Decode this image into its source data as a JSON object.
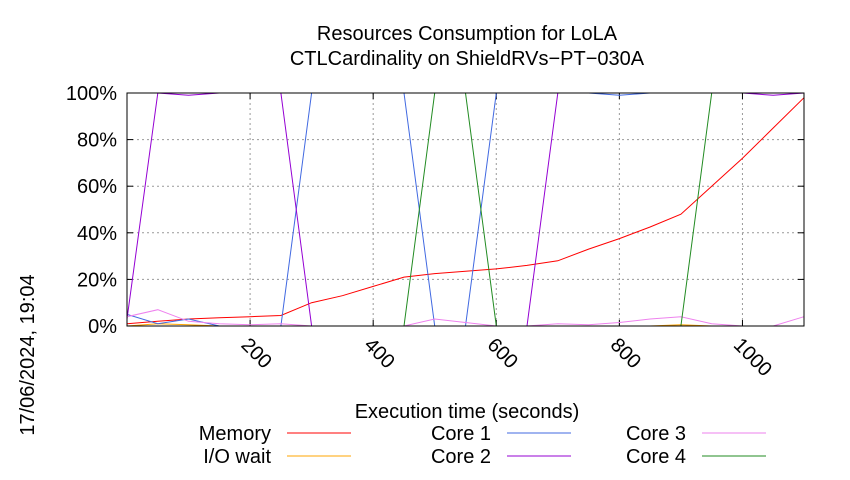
{
  "chart_data": {
    "type": "line",
    "title": "Resources Consumption for LoLA",
    "subtitle": "CTLCardinality on ShieldRVs−PT−030A",
    "xlabel": "Execution time (seconds)",
    "ylabel": "",
    "timestamp": "17/06/2024, 19:04",
    "xlim": [
      0,
      1100
    ],
    "ylim": [
      0,
      100
    ],
    "x_ticks": [
      200,
      400,
      600,
      800,
      1000
    ],
    "x_tick_labels": [
      "200",
      "400",
      "600",
      "800",
      "1000"
    ],
    "y_ticks": [
      0,
      20,
      40,
      60,
      80,
      100
    ],
    "y_tick_labels": [
      "0%",
      "20%",
      "40%",
      "60%",
      "80%",
      "100%"
    ],
    "grid": true,
    "legend_position": "bottom",
    "series": [
      {
        "name": "Memory",
        "color": "#ff0000",
        "x": [
          0,
          50,
          100,
          150,
          200,
          250,
          300,
          350,
          400,
          450,
          500,
          550,
          600,
          650,
          700,
          750,
          800,
          850,
          900,
          950,
          1000,
          1050,
          1100
        ],
        "y": [
          1,
          2,
          3,
          3.5,
          4,
          4.5,
          10,
          13,
          17,
          21,
          22.5,
          23.5,
          24.5,
          26,
          28,
          33,
          37.5,
          42.5,
          48,
          60,
          72,
          85,
          98
        ]
      },
      {
        "name": "I/O wait",
        "color": "#ffa500",
        "x": [
          0,
          50,
          100,
          150,
          200,
          250,
          300,
          350,
          400,
          450,
          500,
          550,
          600,
          650,
          700,
          750,
          800,
          850,
          900,
          950,
          1000,
          1050,
          1100
        ],
        "y": [
          0,
          1,
          0.5,
          0,
          0,
          0,
          0,
          0,
          0,
          0,
          0,
          0,
          0,
          0,
          0,
          0,
          0,
          0,
          0.5,
          0,
          0,
          0,
          0
        ]
      },
      {
        "name": "Core 1",
        "color": "#4169e1",
        "x": [
          0,
          50,
          100,
          150,
          200,
          250,
          300,
          350,
          400,
          450,
          500,
          550,
          600,
          650,
          700,
          750,
          800,
          850,
          900,
          950,
          1000,
          1050,
          1100
        ],
        "y": [
          5,
          1,
          3,
          0,
          0,
          0,
          100,
          100,
          100,
          100,
          0,
          0,
          100,
          100,
          100,
          100,
          99,
          100,
          100,
          100,
          100,
          100,
          100
        ]
      },
      {
        "name": "Core 2",
        "color": "#9400d3",
        "x": [
          0,
          50,
          100,
          150,
          200,
          250,
          300,
          350,
          400,
          450,
          500,
          550,
          600,
          650,
          700,
          750,
          800,
          850,
          900,
          950,
          1000,
          1050,
          1100
        ],
        "y": [
          3,
          100,
          99,
          100,
          100,
          100,
          0,
          0,
          0,
          0,
          0,
          0,
          0,
          0,
          100,
          100,
          100,
          100,
          100,
          100,
          100,
          99,
          100
        ]
      },
      {
        "name": "Core 3",
        "color": "#ee82ee",
        "x": [
          0,
          50,
          100,
          150,
          200,
          250,
          300,
          350,
          400,
          450,
          500,
          550,
          600,
          650,
          700,
          750,
          800,
          850,
          900,
          950,
          1000,
          1050,
          1100
        ],
        "y": [
          4,
          7,
          2,
          1,
          0.5,
          1,
          0,
          0,
          0,
          0,
          3,
          1.5,
          0,
          0,
          1,
          0.5,
          1.5,
          3,
          4,
          1,
          0,
          0,
          4
        ]
      },
      {
        "name": "Core 4",
        "color": "#228b22",
        "x": [
          0,
          50,
          100,
          150,
          200,
          250,
          300,
          350,
          400,
          450,
          500,
          550,
          600,
          650,
          700,
          750,
          800,
          850,
          900,
          950,
          1000,
          1050,
          1100
        ],
        "y": [
          0,
          0,
          0,
          0,
          0,
          0,
          0,
          0,
          0,
          0,
          100,
          100,
          0,
          0,
          0,
          0,
          0,
          0,
          0,
          100,
          100,
          100,
          100
        ]
      }
    ]
  }
}
